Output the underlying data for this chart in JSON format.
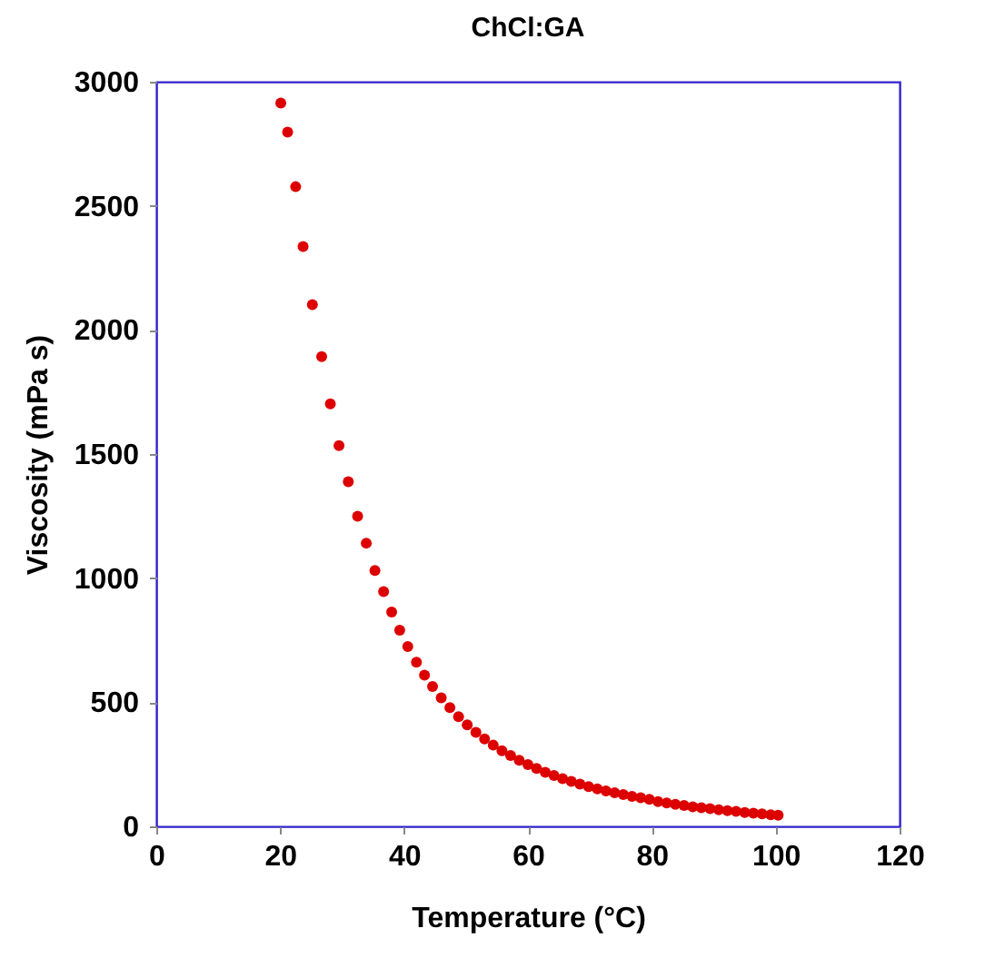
{
  "chart_data": {
    "type": "scatter",
    "title": "ChCl:GA",
    "xlabel": "Temperature (°C)",
    "ylabel": "Viscosity (mPa s)",
    "x": [
      20.1,
      21.2,
      22.5,
      23.7,
      25.2,
      26.7,
      28.1,
      29.5,
      31,
      32.5,
      33.9,
      35.3,
      36.7,
      38,
      39.3,
      40.6,
      42,
      43.3,
      44.6,
      46,
      47.4,
      48.8,
      50.2,
      51.6,
      53,
      54.4,
      55.8,
      57.2,
      58.6,
      60,
      61.4,
      62.8,
      64.2,
      65.6,
      67,
      68.4,
      69.8,
      71.2,
      72.6,
      74,
      75.4,
      76.8,
      78.2,
      79.6,
      81,
      82.4,
      83.8,
      85.2,
      86.6,
      88,
      89.4,
      90.8,
      92.2,
      93.6,
      95,
      96.4,
      97.8,
      99.2,
      100.4
    ],
    "series": [
      {
        "color": "#dd0000",
        "values": [
          2914,
          2797,
          2577,
          2336,
          2102,
          1892,
          1702,
          1534,
          1388,
          1249,
          1141,
          1031,
          946,
          863,
          790,
          724,
          661,
          609,
          563,
          518,
          478,
          442,
          409,
          379,
          352,
          327,
          305,
          285,
          266,
          249,
          233,
          218,
          205,
          192,
          181,
          170,
          160,
          151,
          143,
          135,
          128,
          121,
          115,
          109,
          100,
          94,
          89,
          84,
          79,
          75,
          71,
          67,
          63,
          60,
          56,
          53,
          50,
          47,
          45
        ]
      }
    ],
    "xlim": [
      0,
      120
    ],
    "xticks": [
      0,
      20,
      40,
      60,
      80,
      100,
      120
    ],
    "ylim": [
      0,
      3000
    ],
    "yticks": [
      0,
      500,
      1000,
      1500,
      2000,
      2500,
      3000
    ],
    "grid": false,
    "marker": "circle"
  }
}
